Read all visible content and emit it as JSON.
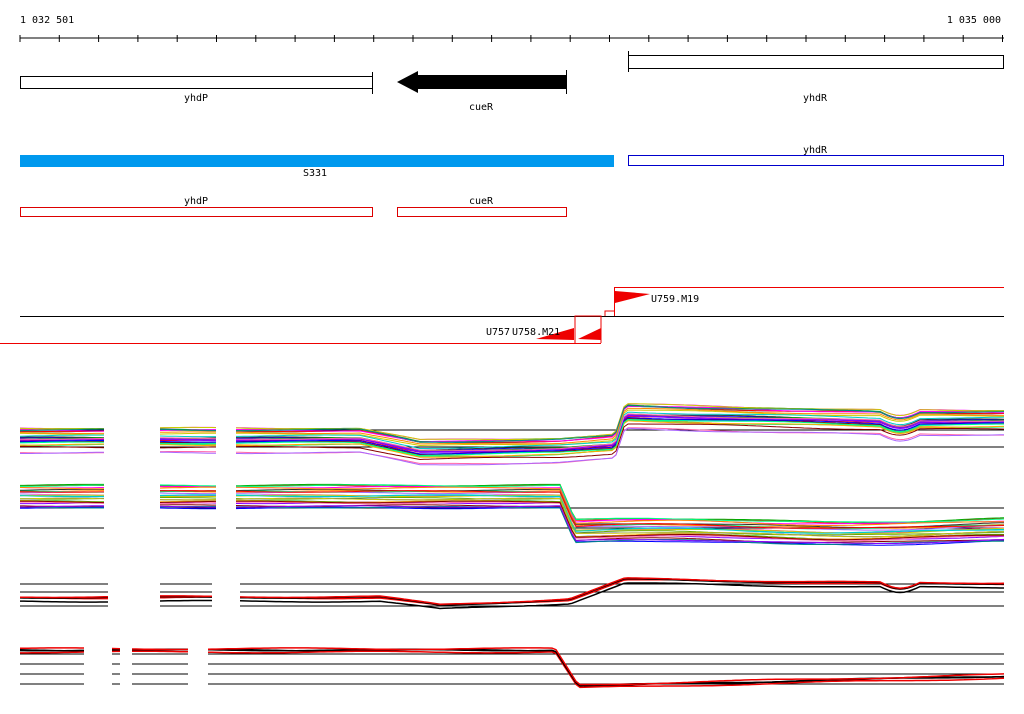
{
  "ruler": {
    "start_label": "1 032 501",
    "end_label": "1 035 000",
    "start": 1032501,
    "end": 1035000
  },
  "annotation_track": {
    "genes": [
      {
        "name": "yhdP",
        "shape": "open-box",
        "color": "#000000"
      },
      {
        "name": "cueR",
        "shape": "filled-arrow-left",
        "color": "#000000"
      },
      {
        "name": "yhdR",
        "shape": "open-box",
        "color": "#000000"
      }
    ]
  },
  "segment_track": {
    "features": [
      {
        "name": "S331",
        "shape": "filled-bar",
        "color": "#0099ee"
      },
      {
        "name": "yhdR",
        "shape": "open-box",
        "color": "#0000cc"
      }
    ]
  },
  "transcript_track": {
    "features": [
      {
        "name": "yhdP",
        "shape": "open-box",
        "color": "#dd0000"
      },
      {
        "name": "cueR",
        "shape": "open-box",
        "color": "#dd0000"
      }
    ]
  },
  "tss_track": {
    "labels": [
      {
        "name": "U759.M19"
      },
      {
        "name": "U757"
      },
      {
        "name": "U758.M21"
      }
    ],
    "marker_color": "#ee0000"
  },
  "expression_panels": [
    {
      "id": "panel-1",
      "style": "multicolor"
    },
    {
      "id": "panel-2",
      "style": "multicolor"
    },
    {
      "id": "panel-3",
      "style": "red-black"
    },
    {
      "id": "panel-4",
      "style": "red-black"
    }
  ],
  "palette": [
    "#ff0000",
    "#00aa00",
    "#0000ff",
    "#ff00ff",
    "#00cccc",
    "#cccc00",
    "#ff8800",
    "#8800ff",
    "#00ff88",
    "#880000",
    "#008888",
    "#ff66aa",
    "#66aa00",
    "#aa66ff",
    "#333333",
    "#ffaa00"
  ]
}
